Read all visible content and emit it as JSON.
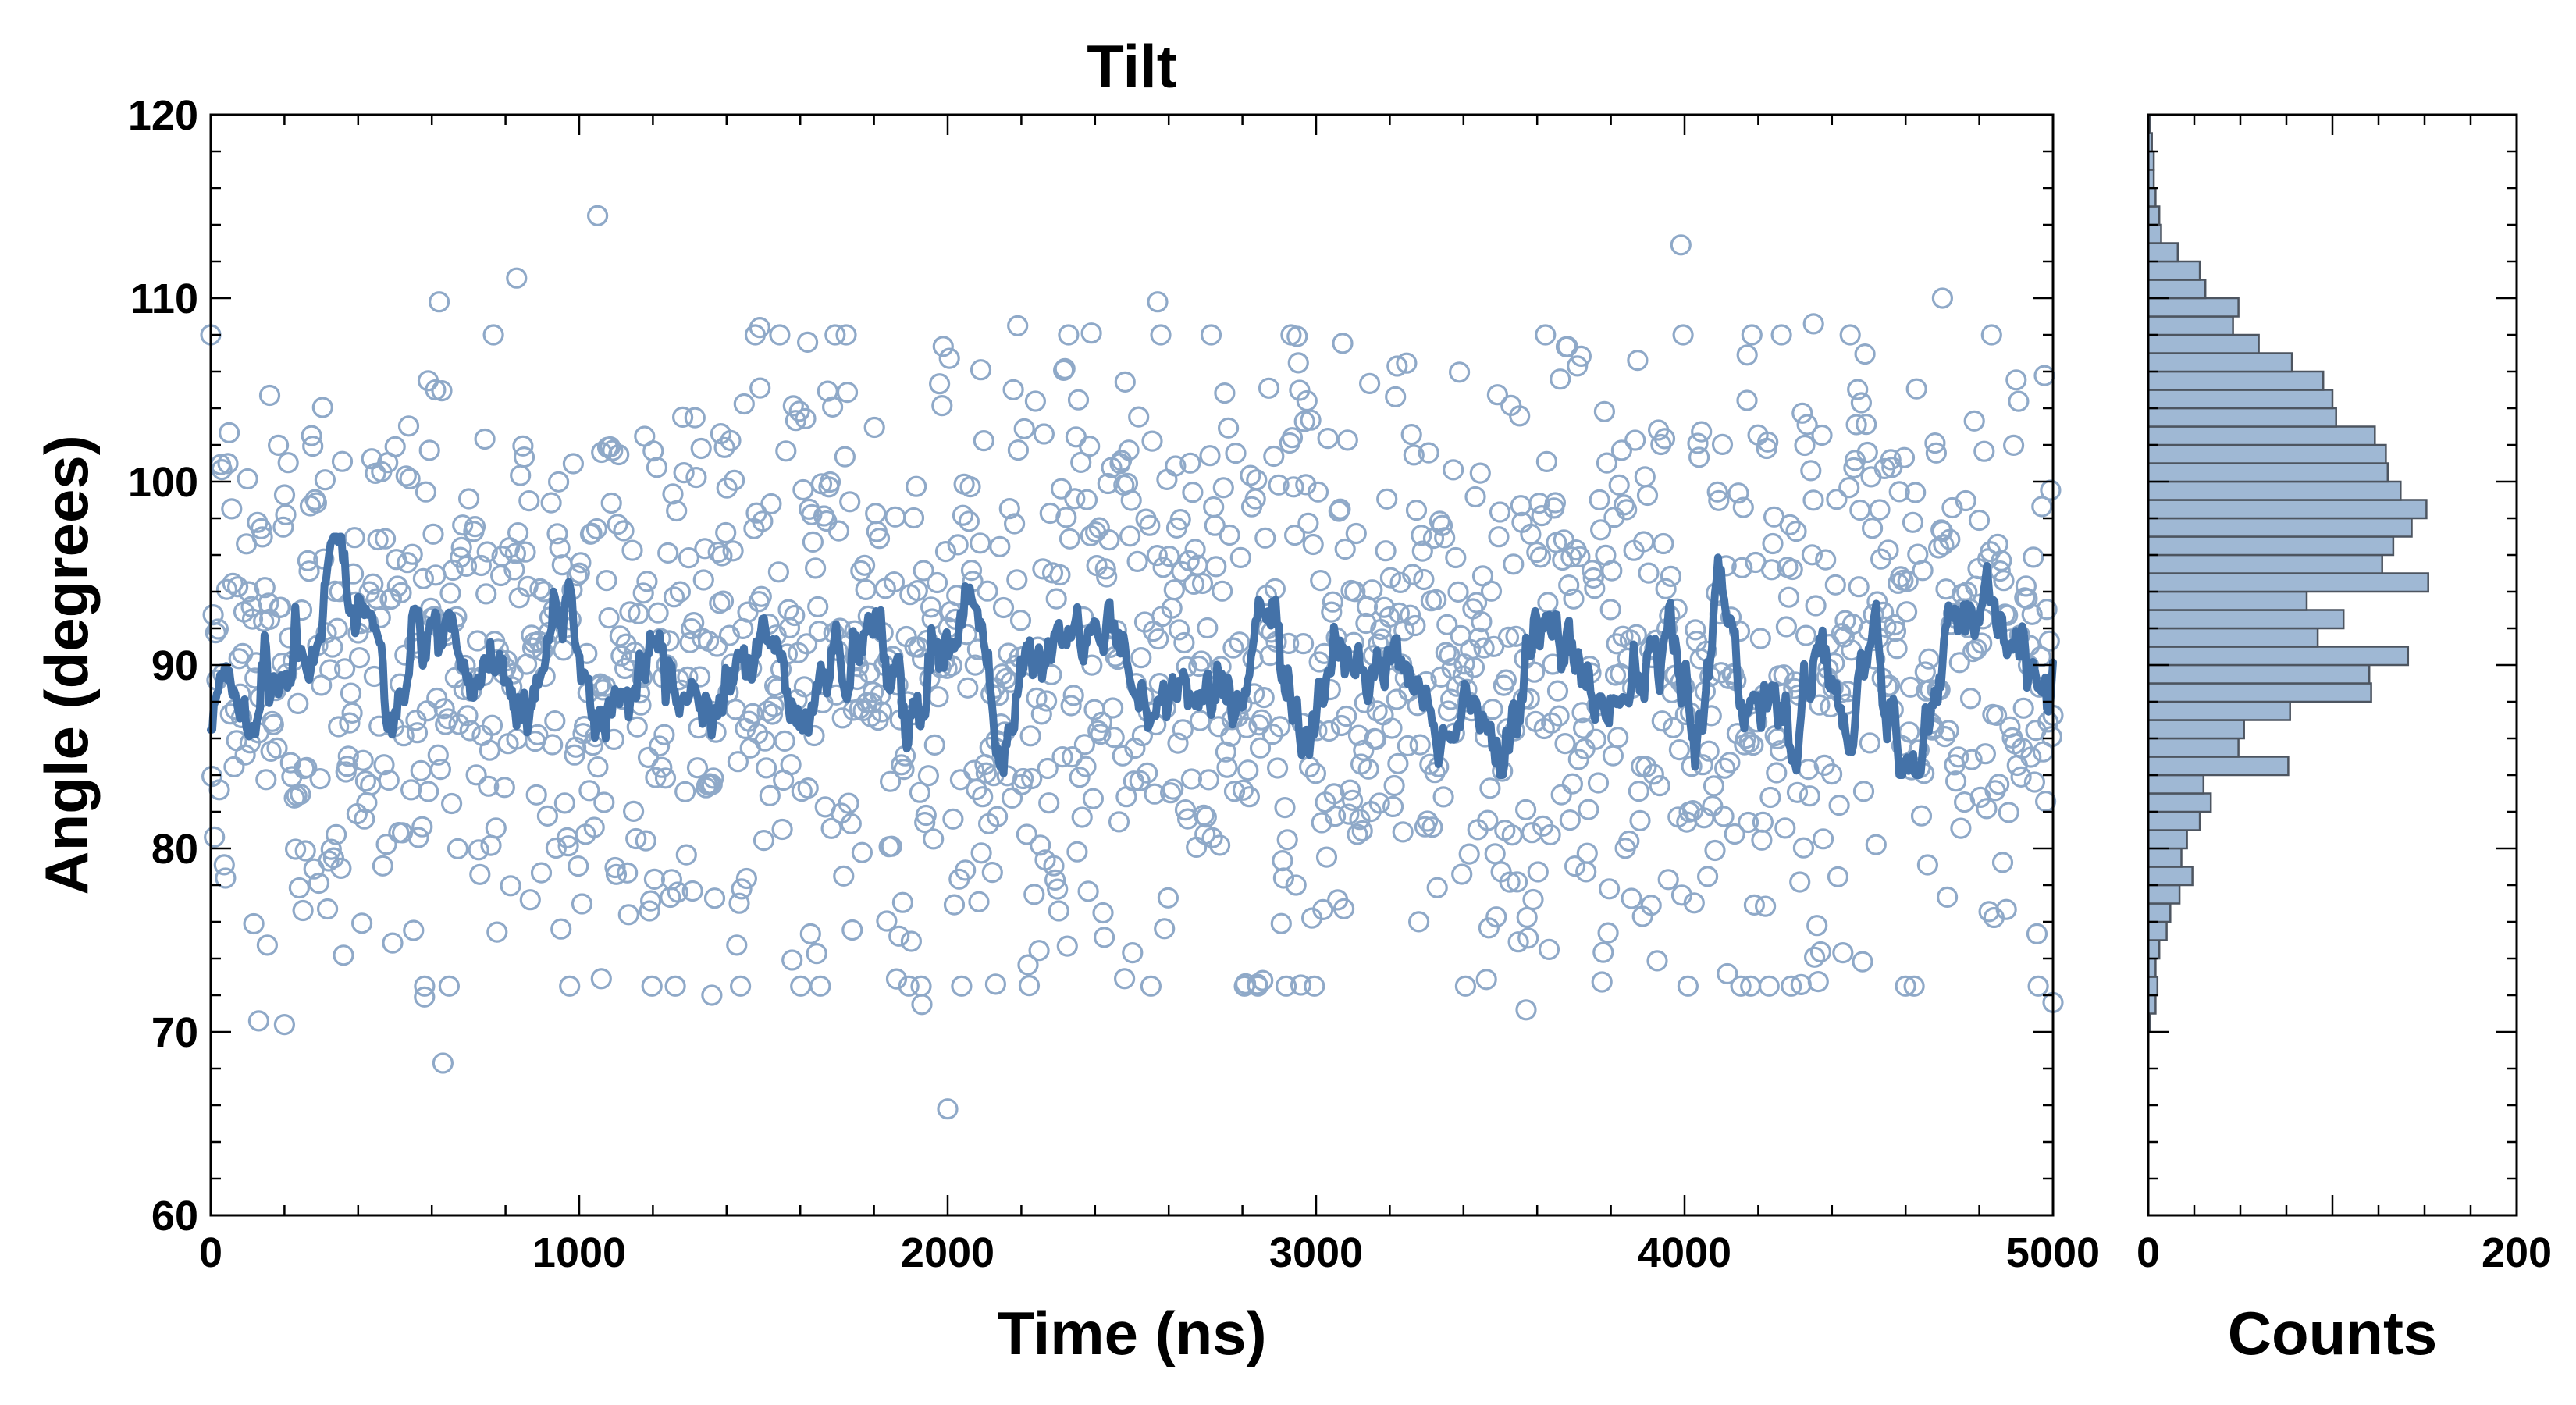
{
  "chart_data": [
    {
      "type": "scatter",
      "title": "Tilt",
      "xlabel": "Time (ns)",
      "ylabel": "Angle (degrees)",
      "xlim": [
        0,
        5000
      ],
      "ylim": [
        60,
        120
      ],
      "xticks": [
        0,
        1000,
        2000,
        3000,
        4000,
        5000
      ],
      "yticks": [
        60,
        70,
        80,
        90,
        100,
        110,
        120
      ],
      "grid": false,
      "legend": "none",
      "colors": {
        "points": "#8fa9c8",
        "line": "#4472a8"
      },
      "series": [
        {
          "kind": "scatter-open-circles",
          "distribution": {
            "count": 1500,
            "mean": 90,
            "sd": 8.3
          },
          "outliers": [
            [
              1050,
              114.5
            ],
            [
              3990,
              112.9
            ],
            [
              830,
              111.1
            ],
            [
              4700,
              110.0
            ],
            [
              620,
              109.8
            ],
            [
              2570,
              109.8
            ],
            [
              2190,
              108.5
            ],
            [
              1490,
              108.4
            ],
            [
              4350,
              108.6
            ],
            [
              1620,
              107.6
            ],
            [
              4170,
              106.9
            ],
            [
              2090,
              106.1
            ],
            [
              3220,
              106.3
            ],
            [
              2390,
              108.1
            ],
            [
              590,
              105.5
            ],
            [
              610,
              105.0
            ],
            [
              160,
              104.7
            ],
            [
              2000,
              65.8
            ],
            [
              630,
              68.3
            ],
            [
              1360,
              72.0
            ],
            [
              580,
              71.9
            ],
            [
              3570,
              71.2
            ],
            [
              2840,
              72.6
            ],
            [
              1060,
              72.9
            ],
            [
              2480,
              72.9
            ],
            [
              130,
              70.6
            ],
            [
              200,
              70.4
            ],
            [
              2130,
              72.6
            ],
            [
              1930,
              71.5
            ],
            [
              5000,
              71.6
            ]
          ]
        },
        {
          "kind": "line",
          "smoothing_window": 8,
          "x_range": [
            0,
            5000
          ],
          "y_range": [
            84,
            97
          ]
        }
      ]
    },
    {
      "type": "bar",
      "orientation": "horizontal",
      "xlabel": "Counts",
      "xlim": [
        0,
        200
      ],
      "xticks": [
        0,
        200
      ],
      "ylim": [
        60,
        120
      ],
      "colors": {
        "fill": "#9fb8d4",
        "edge": "#4d5560"
      },
      "bins": [
        [
          70,
          71,
          1
        ],
        [
          71,
          72,
          4
        ],
        [
          72,
          73,
          5
        ],
        [
          73,
          74,
          4
        ],
        [
          74,
          75,
          6
        ],
        [
          75,
          76,
          10
        ],
        [
          76,
          77,
          12
        ],
        [
          77,
          78,
          17
        ],
        [
          78,
          79,
          24
        ],
        [
          79,
          80,
          18
        ],
        [
          80,
          81,
          21
        ],
        [
          81,
          82,
          28
        ],
        [
          82,
          83,
          34
        ],
        [
          83,
          84,
          30
        ],
        [
          84,
          85,
          76
        ],
        [
          85,
          86,
          49
        ],
        [
          86,
          87,
          52
        ],
        [
          87,
          88,
          77
        ],
        [
          88,
          89,
          121
        ],
        [
          89,
          90,
          120
        ],
        [
          90,
          91,
          141
        ],
        [
          91,
          92,
          92
        ],
        [
          92,
          93,
          106
        ],
        [
          93,
          94,
          86
        ],
        [
          94,
          95,
          152
        ],
        [
          95,
          96,
          127
        ],
        [
          96,
          97,
          133
        ],
        [
          97,
          98,
          143
        ],
        [
          98,
          99,
          151
        ],
        [
          99,
          100,
          137
        ],
        [
          100,
          101,
          130
        ],
        [
          101,
          102,
          129
        ],
        [
          102,
          103,
          123
        ],
        [
          103,
          104,
          102
        ],
        [
          104,
          105,
          100
        ],
        [
          105,
          106,
          95
        ],
        [
          106,
          107,
          78
        ],
        [
          107,
          108,
          60
        ],
        [
          108,
          109,
          46
        ],
        [
          109,
          110,
          49
        ],
        [
          110,
          111,
          31
        ],
        [
          111,
          112,
          28
        ],
        [
          112,
          113,
          16
        ],
        [
          113,
          114,
          7
        ],
        [
          114,
          115,
          6
        ],
        [
          115,
          116,
          4
        ],
        [
          116,
          117,
          3
        ],
        [
          117,
          118,
          3
        ],
        [
          118,
          119,
          2
        ],
        [
          119,
          120,
          1
        ]
      ]
    }
  ]
}
